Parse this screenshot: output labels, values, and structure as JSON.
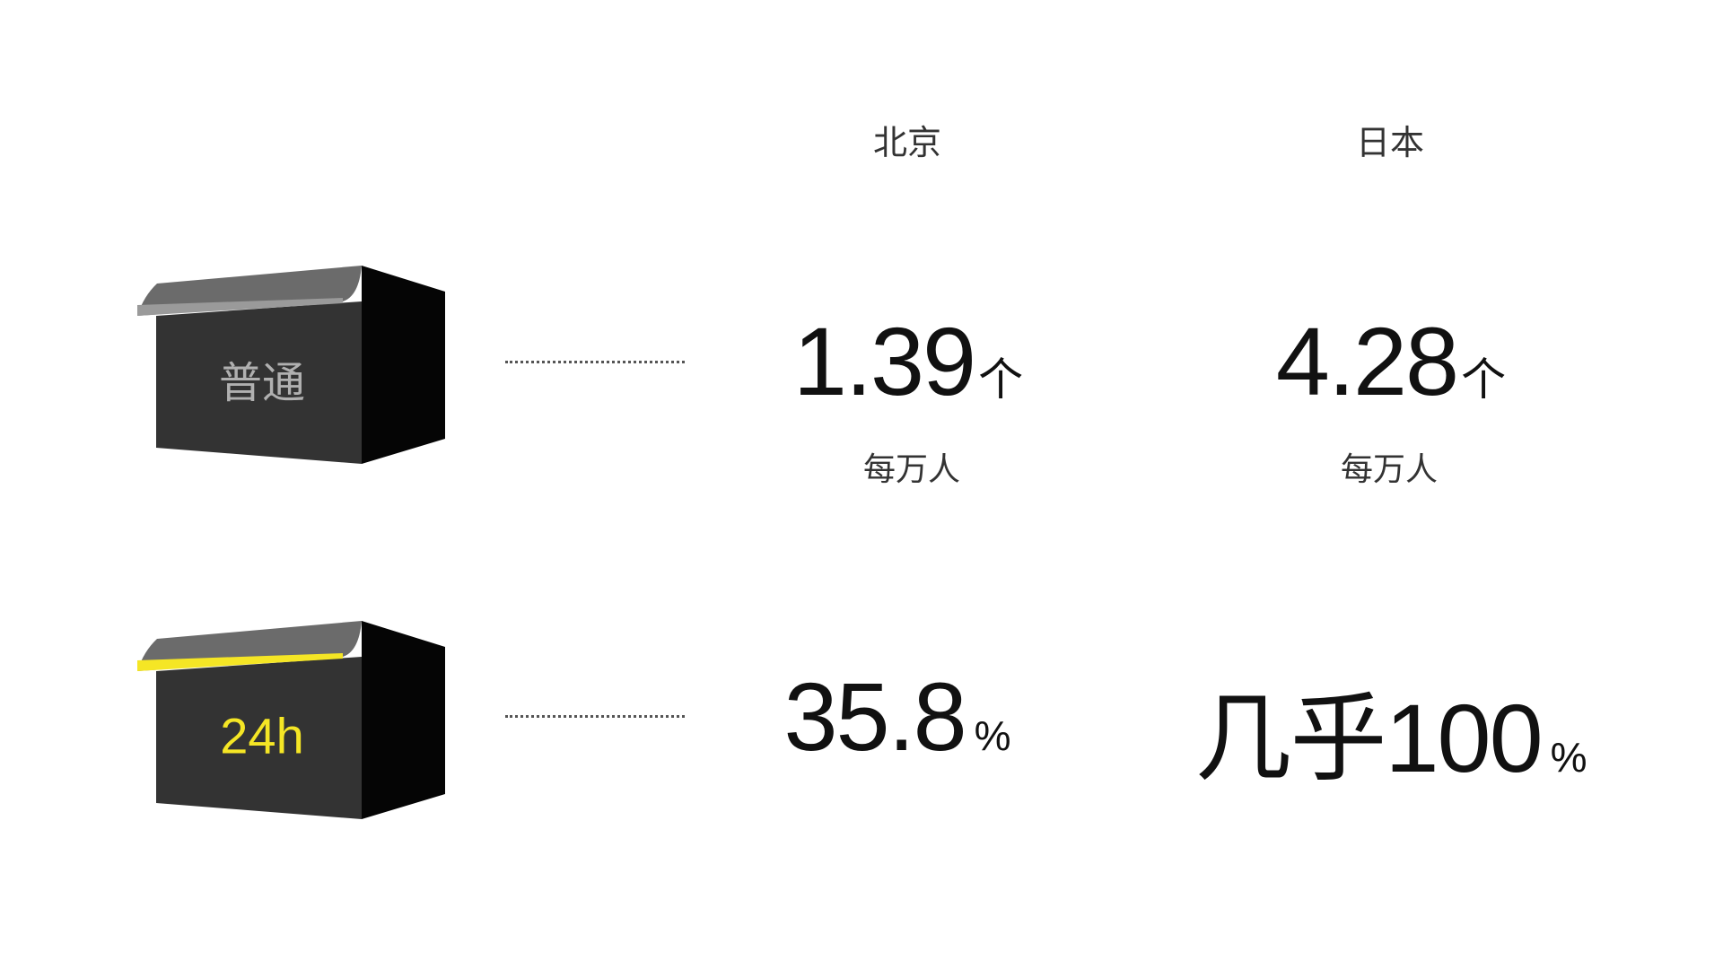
{
  "columns": [
    "北京",
    "日本"
  ],
  "rows": [
    {
      "label": "普通",
      "label_color": "#b0b0b0",
      "roof_edge_color": "#9a9a9a",
      "values": [
        {
          "number": "1.39",
          "unit": "个",
          "sub": "每万人"
        },
        {
          "number": "4.28",
          "unit": "个",
          "sub": "每万人"
        }
      ]
    },
    {
      "label": "24h",
      "label_color": "#f5e625",
      "roof_edge_color": "#f5e625",
      "values": [
        {
          "number": "35.8",
          "unit": "%"
        },
        {
          "number": "几乎100",
          "unit": "%"
        }
      ]
    }
  ],
  "colors": {
    "box_front": "#333333",
    "box_side": "#050505",
    "roof": "#6b6b6b"
  }
}
